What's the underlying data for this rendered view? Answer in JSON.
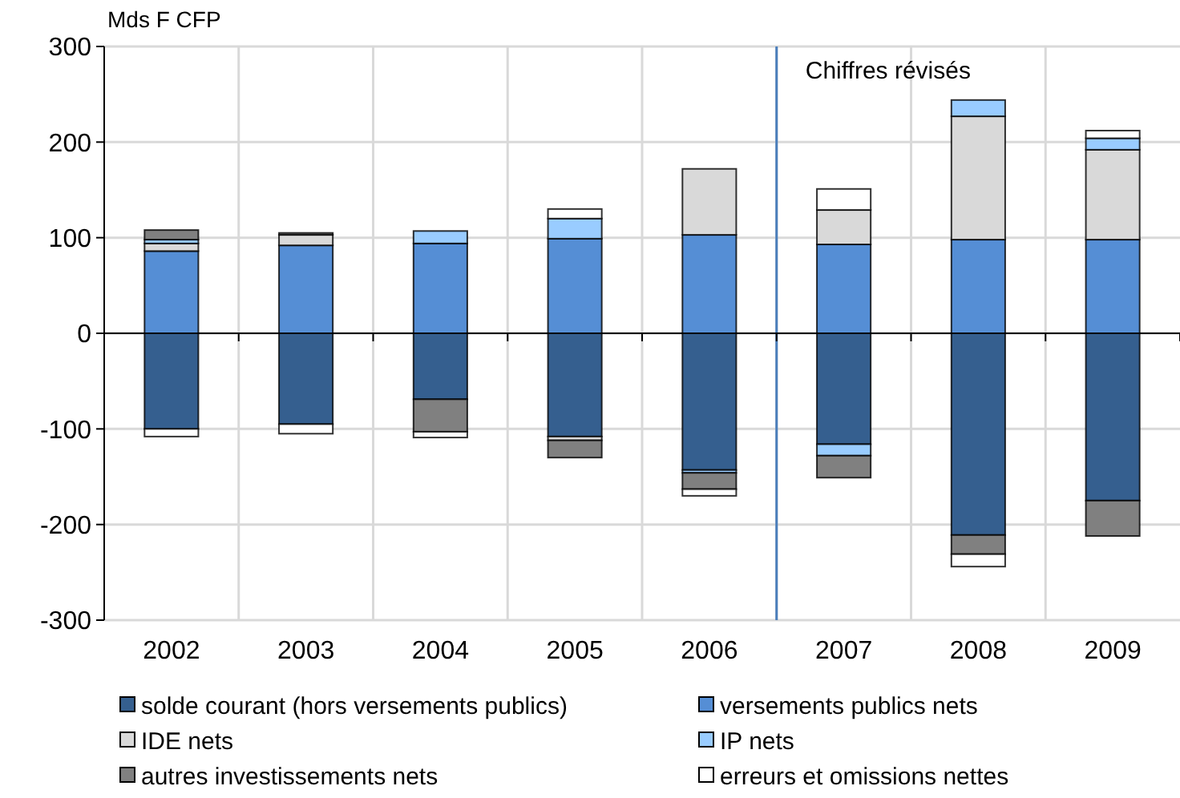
{
  "chart_data": {
    "type": "bar",
    "stacked": true,
    "ylabel": "Mds F CFP",
    "categories": [
      "2002",
      "2003",
      "2004",
      "2005",
      "2006",
      "2007",
      "2008",
      "2009"
    ],
    "series": [
      {
        "name": "solde courant (hors versements publics)",
        "color": "#355f8f",
        "values": [
          -100,
          -95,
          -69,
          -108,
          -143,
          -116,
          -211,
          -175
        ]
      },
      {
        "name": "versements publics nets",
        "color": "#558ed5",
        "values": [
          86,
          92,
          94,
          99,
          103,
          93,
          98,
          98
        ]
      },
      {
        "name": "IDE nets",
        "color": "#d9d9d9",
        "values": [
          8,
          11,
          null,
          -4,
          69,
          36,
          129,
          94
        ]
      },
      {
        "name": "IP nets",
        "color": "#99ccff",
        "values": [
          4,
          0,
          13,
          21,
          -3,
          -12,
          17,
          12
        ]
      },
      {
        "name": "autres investissements nets",
        "color": "#808080",
        "values": [
          10,
          2,
          -34,
          -18,
          -17,
          -23,
          -20,
          -37
        ]
      },
      {
        "name": "erreurs et omissions nettes",
        "color": "#ffffff",
        "values": [
          -8,
          -10,
          -6,
          10,
          -7,
          22,
          -13,
          8
        ]
      }
    ],
    "ylim": [
      -300,
      300
    ],
    "yticks": [
      -300,
      -200,
      -100,
      0,
      100,
      200,
      300
    ],
    "grid": true,
    "legend": "bottom",
    "ref_lines": [
      {
        "axis": "x",
        "value": "2007",
        "label": "Chiffres révisés",
        "color": "#4a7ebb"
      }
    ]
  }
}
